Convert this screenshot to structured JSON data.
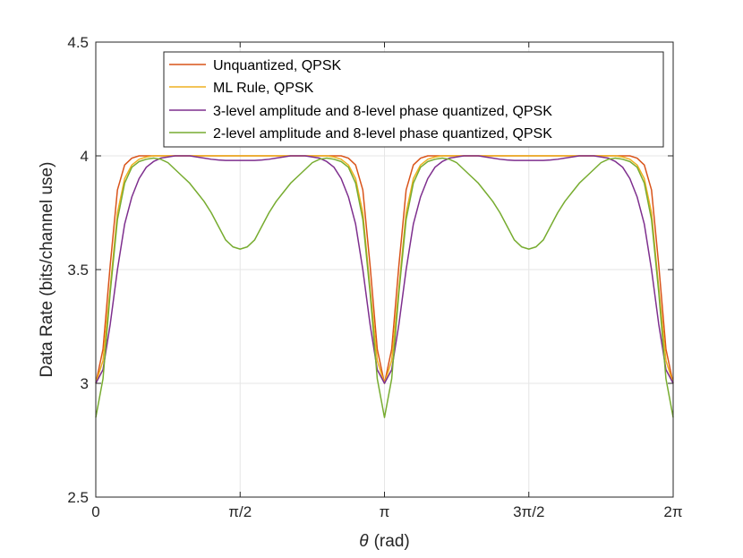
{
  "chart_data": {
    "type": "line",
    "title": "",
    "xlabel_symbol": "θ",
    "xlabel_unit": "(rad)",
    "ylabel": "Data Rate (bits/channel use)",
    "xlim": [
      0,
      6.2832
    ],
    "ylim": [
      2.5,
      4.5
    ],
    "grid": true,
    "legend_position": "top-right",
    "xticks": [
      {
        "value": 0,
        "label": "0"
      },
      {
        "value": 1.5708,
        "label": "π/2"
      },
      {
        "value": 3.1416,
        "label": "π"
      },
      {
        "value": 4.7124,
        "label": "3π/2"
      },
      {
        "value": 6.2832,
        "label": "2π"
      }
    ],
    "yticks": [
      {
        "value": 2.5,
        "label": "2.5"
      },
      {
        "value": 3,
        "label": "3"
      },
      {
        "value": 3.5,
        "label": "3.5"
      },
      {
        "value": 4,
        "label": "4"
      },
      {
        "value": 4.5,
        "label": "4.5"
      }
    ],
    "x_half_period": [
      0,
      0.0785,
      0.1571,
      0.2356,
      0.3142,
      0.3927,
      0.4712,
      0.5498,
      0.6283,
      0.7069,
      0.7854,
      0.8639,
      0.9425,
      1.021,
      1.0996,
      1.1781,
      1.2566,
      1.3352,
      1.4137,
      1.4923,
      1.5708,
      1.6493,
      1.7279,
      1.8064,
      1.885,
      1.9635,
      2.042,
      2.1206,
      2.1991,
      2.2777,
      2.3562,
      2.4347,
      2.5133,
      2.5918,
      2.6704,
      2.7489,
      2.8274,
      2.906,
      2.9845,
      3.0631,
      3.1416
    ],
    "series": [
      {
        "name": "Unquantized, QPSK",
        "color": "#D95319",
        "y_half_period": [
          3.0,
          3.15,
          3.52,
          3.85,
          3.96,
          3.99,
          4.0,
          4.0,
          4.0,
          4.0,
          4.0,
          4.0,
          4.0,
          4.0,
          4.0,
          4.0,
          4.0,
          4.0,
          4.0,
          4.0,
          4.0,
          4.0,
          4.0,
          4.0,
          4.0,
          4.0,
          4.0,
          4.0,
          4.0,
          4.0,
          4.0,
          4.0,
          4.0,
          4.0,
          4.0,
          3.99,
          3.96,
          3.85,
          3.52,
          3.15,
          3.0
        ]
      },
      {
        "name": "ML Rule, QPSK",
        "color": "#EDB120",
        "y_half_period": [
          3.0,
          3.1,
          3.42,
          3.75,
          3.9,
          3.96,
          3.985,
          3.995,
          4.0,
          4.0,
          4.0,
          4.0,
          4.0,
          4.0,
          4.0,
          4.0,
          4.0,
          4.0,
          4.0,
          4.0,
          4.0,
          4.0,
          4.0,
          4.0,
          4.0,
          4.0,
          4.0,
          4.0,
          4.0,
          4.0,
          4.0,
          4.0,
          4.0,
          3.995,
          3.985,
          3.96,
          3.9,
          3.75,
          3.42,
          3.1,
          3.0
        ]
      },
      {
        "name": "3-level amplitude and 8-level phase quantized, QPSK",
        "color": "#7E2F8E",
        "y_half_period": [
          3.0,
          3.06,
          3.26,
          3.5,
          3.7,
          3.82,
          3.9,
          3.95,
          3.975,
          3.99,
          3.995,
          4.0,
          4.0,
          4.0,
          3.995,
          3.99,
          3.985,
          3.982,
          3.98,
          3.98,
          3.98,
          3.98,
          3.98,
          3.982,
          3.985,
          3.99,
          3.995,
          4.0,
          4.0,
          4.0,
          3.995,
          3.99,
          3.975,
          3.95,
          3.9,
          3.82,
          3.7,
          3.5,
          3.26,
          3.06,
          3.0
        ]
      },
      {
        "name": "2-level amplitude and 8-level phase quantized, QPSK",
        "color": "#77AC30",
        "y_half_period": [
          2.85,
          3.02,
          3.4,
          3.72,
          3.88,
          3.95,
          3.975,
          3.985,
          3.99,
          3.985,
          3.97,
          3.94,
          3.91,
          3.88,
          3.84,
          3.8,
          3.75,
          3.69,
          3.63,
          3.6,
          3.59,
          3.6,
          3.63,
          3.69,
          3.75,
          3.8,
          3.84,
          3.88,
          3.91,
          3.94,
          3.97,
          3.985,
          3.99,
          3.985,
          3.975,
          3.95,
          3.88,
          3.72,
          3.4,
          3.02,
          2.85
        ]
      }
    ]
  }
}
